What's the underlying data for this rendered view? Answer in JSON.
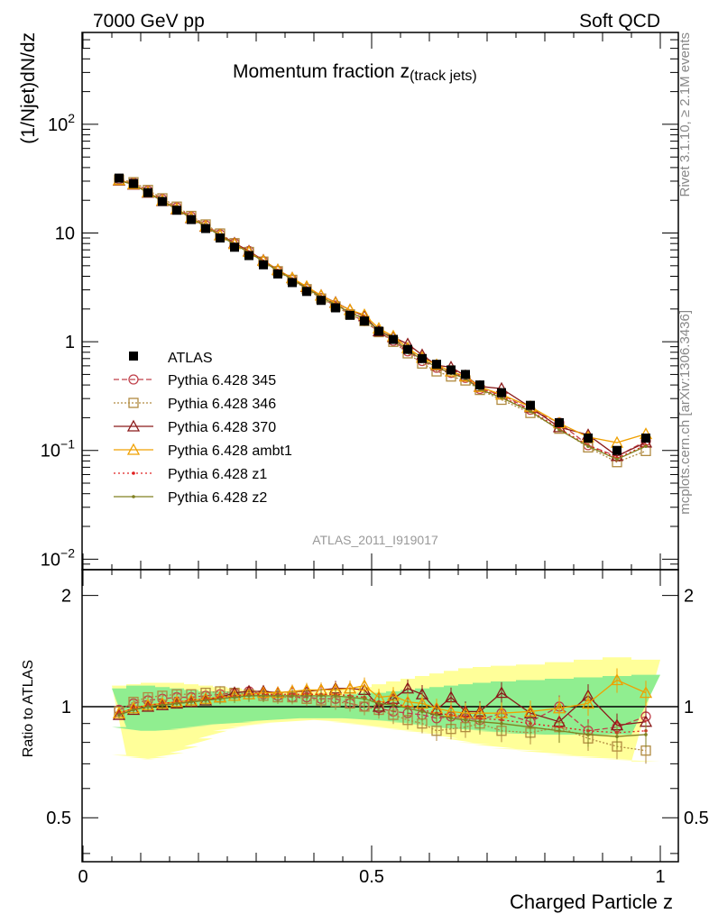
{
  "header": {
    "left": "7000 GeV pp",
    "right": "Soft QCD"
  },
  "side_text": {
    "top": "Rivet 3.1.10, ≥ 2.1M events",
    "bottom": "mcplots.cern.ch [arXiv:1306.3436]"
  },
  "colors": {
    "band_inner": "#90ee90",
    "band_outer": "#ffff99",
    "data": "#000000",
    "p345": "#c0404a",
    "p346": "#b08a40",
    "p370": "#8b1a1a",
    "ambt1": "#f0a000",
    "z1": "#e02020",
    "z2": "#808020"
  },
  "chart_data": {
    "type": "line",
    "title": "Momentum fraction z",
    "title_sub": "(track jets)",
    "analysis_label": "ATLAS_2011_I919017",
    "xlabel": "Charged Particle z",
    "ylabel": "(1/Njet)dN/dz",
    "ratio_ylabel": "Ratio to ATLAS",
    "xlim": [
      0,
      1
    ],
    "ylim": [
      0.008,
      700
    ],
    "yscale": "log",
    "ratio_ylim": [
      0.38,
      2.35
    ],
    "x_ticks": [
      "0",
      "0.5",
      "1"
    ],
    "y_ticks": [
      {
        "base": "10",
        "exp": "2",
        "v": 100
      },
      {
        "base": "10",
        "exp": "",
        "v": 10
      },
      {
        "base": "1",
        "exp": "",
        "v": 1
      },
      {
        "base": "10",
        "exp": "−1",
        "v": 0.1
      },
      {
        "base": "10",
        "exp": "−2",
        "v": 0.01
      }
    ],
    "ratio_ticks": [
      "2",
      "1",
      "0.5"
    ],
    "x": [
      0.0625,
      0.0875,
      0.1125,
      0.1375,
      0.1625,
      0.1875,
      0.2125,
      0.2375,
      0.2625,
      0.2875,
      0.3125,
      0.3375,
      0.3625,
      0.3875,
      0.4125,
      0.4375,
      0.4625,
      0.4875,
      0.5125,
      0.5375,
      0.5625,
      0.5875,
      0.6125,
      0.6375,
      0.6625,
      0.6875,
      0.725,
      0.775,
      0.825,
      0.875,
      0.925,
      0.975
    ],
    "data_values": [
      32,
      28.5,
      23.5,
      19.5,
      16.2,
      13.3,
      11,
      9,
      7.4,
      6.2,
      5.1,
      4.2,
      3.5,
      2.9,
      2.4,
      2.05,
      1.75,
      1.55,
      1.25,
      1.05,
      0.85,
      0.7,
      0.62,
      0.55,
      0.5,
      0.4,
      0.34,
      0.26,
      0.18,
      0.13,
      0.1,
      0.13
    ],
    "band_inner": {
      "low": [
        0.88,
        0.86,
        0.86,
        0.86,
        0.87,
        0.88,
        0.89,
        0.9,
        0.9,
        0.91,
        0.92,
        0.92,
        0.93,
        0.93,
        0.93,
        0.93,
        0.93,
        0.92,
        0.92,
        0.91,
        0.9,
        0.89,
        0.88,
        0.87,
        0.87,
        0.86,
        0.85,
        0.84,
        0.84,
        0.84,
        0.84,
        0.84
      ],
      "high": [
        1.12,
        1.14,
        1.14,
        1.13,
        1.12,
        1.11,
        1.1,
        1.1,
        1.1,
        1.09,
        1.08,
        1.08,
        1.07,
        1.07,
        1.07,
        1.07,
        1.08,
        1.09,
        1.09,
        1.1,
        1.11,
        1.12,
        1.13,
        1.14,
        1.15,
        1.16,
        1.17,
        1.18,
        1.19,
        1.2,
        1.21,
        1.22
      ]
    },
    "band_outer": {
      "low": [
        0.74,
        0.73,
        0.72,
        0.73,
        0.75,
        0.78,
        0.82,
        0.86,
        0.88,
        0.89,
        0.9,
        0.91,
        0.91,
        0.92,
        0.92,
        0.91,
        0.9,
        0.89,
        0.88,
        0.87,
        0.86,
        0.85,
        0.84,
        0.82,
        0.8,
        0.79,
        0.77,
        0.76,
        0.74,
        0.73,
        0.72,
        0.71
      ],
      "high": [
        1.14,
        1.15,
        1.16,
        1.16,
        1.16,
        1.15,
        1.14,
        1.13,
        1.12,
        1.11,
        1.1,
        1.1,
        1.1,
        1.1,
        1.1,
        1.11,
        1.12,
        1.13,
        1.15,
        1.17,
        1.19,
        1.21,
        1.23,
        1.25,
        1.27,
        1.28,
        1.29,
        1.3,
        1.32,
        1.34,
        1.36,
        1.34
      ]
    },
    "series": [
      {
        "name": "Pythia 6.428 345",
        "color_key": "p345",
        "marker": "circle",
        "dash": "6,3",
        "ratio": [
          0.98,
          1.02,
          1.04,
          1.05,
          1.06,
          1.06,
          1.07,
          1.08,
          1.09,
          1.1,
          1.08,
          1.07,
          1.06,
          1.06,
          1.05,
          1.05,
          1.02,
          1.0,
          0.99,
          0.97,
          0.96,
          0.95,
          0.93,
          0.94,
          0.93,
          0.92,
          0.96,
          0.91,
          1.0,
          0.86,
          0.88,
          0.94
        ]
      },
      {
        "name": "Pythia 6.428 346",
        "color_key": "p346",
        "marker": "square",
        "dash": "2,2",
        "ratio": [
          0.97,
          1.03,
          1.06,
          1.07,
          1.08,
          1.08,
          1.09,
          1.1,
          1.09,
          1.08,
          1.07,
          1.06,
          1.06,
          1.05,
          1.04,
          1.03,
          1.02,
          1.0,
          0.98,
          0.95,
          0.92,
          0.9,
          0.86,
          0.87,
          0.88,
          0.9,
          0.86,
          0.85,
          0.88,
          0.82,
          0.78,
          0.76
        ]
      },
      {
        "name": "Pythia 6.428 370",
        "color_key": "p370",
        "marker": "triangle",
        "dash": "",
        "ratio": [
          0.95,
          0.98,
          1.0,
          1.01,
          1.02,
          1.03,
          1.04,
          1.06,
          1.09,
          1.1,
          1.1,
          1.09,
          1.1,
          1.1,
          1.11,
          1.12,
          1.12,
          1.11,
          1.0,
          1.05,
          1.12,
          1.08,
          0.98,
          1.06,
          0.97,
          0.97,
          1.09,
          0.96,
          0.91,
          1.07,
          0.89,
          0.91
        ]
      },
      {
        "name": "Pythia 6.428 ambt1",
        "color_key": "ambt1",
        "marker": "triangle",
        "dash": "",
        "ratio": [
          0.96,
          0.99,
          1.01,
          1.02,
          1.03,
          1.04,
          1.05,
          1.06,
          1.07,
          1.08,
          1.09,
          1.09,
          1.1,
          1.11,
          1.11,
          1.11,
          1.12,
          1.14,
          1.06,
          1.07,
          1.03,
          1.02,
          0.99,
          0.97,
          0.96,
          0.96,
          0.96,
          0.97,
          0.99,
          1.02,
          1.18,
          1.09
        ]
      },
      {
        "name": "Pythia 6.428 z1",
        "color_key": "z1",
        "marker": "dot",
        "dash": "2,3",
        "ratio": [
          0.96,
          0.99,
          1.01,
          1.02,
          1.03,
          1.04,
          1.05,
          1.06,
          1.07,
          1.08,
          1.08,
          1.08,
          1.08,
          1.08,
          1.08,
          1.08,
          1.07,
          1.06,
          1.03,
          1.02,
          1.0,
          0.98,
          0.96,
          0.95,
          0.94,
          0.93,
          0.92,
          0.9,
          0.88,
          0.86,
          0.85,
          0.86
        ]
      },
      {
        "name": "Pythia 6.428 z2",
        "color_key": "z2",
        "marker": "dot",
        "dash": "",
        "ratio": [
          0.95,
          0.98,
          1.0,
          1.01,
          1.02,
          1.03,
          1.04,
          1.05,
          1.06,
          1.07,
          1.07,
          1.07,
          1.07,
          1.07,
          1.07,
          1.07,
          1.06,
          1.05,
          1.02,
          1.01,
          0.99,
          0.97,
          0.95,
          0.93,
          0.92,
          0.91,
          0.9,
          0.88,
          0.86,
          0.84,
          0.83,
          0.84
        ]
      }
    ],
    "legend_data_label": "ATLAS",
    "legend_position": "middle-left",
    "grid": false
  }
}
